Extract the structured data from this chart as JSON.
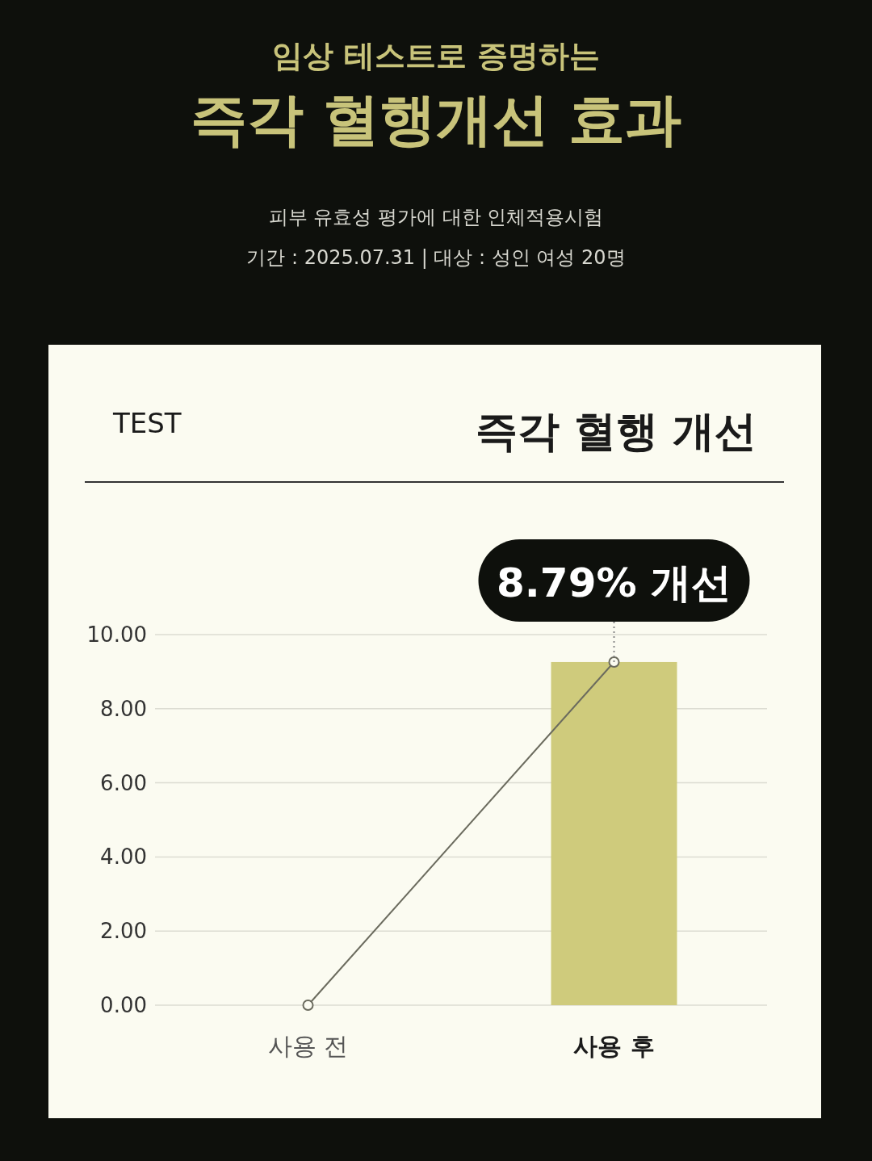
{
  "chart_data": {
    "type": "bar",
    "title": "즉각 혈행개선 효과",
    "subtitle": "임상 테스트로 증명하는",
    "categories": [
      "사용 전",
      "사용 후"
    ],
    "series": [
      {
        "color": "#cfcb7c",
        "values": [
          null,
          9.26
        ]
      },
      {
        "type": "line",
        "color": "#6b6b5e",
        "values": [
          0,
          9.26
        ]
      }
    ],
    "marker": "circle",
    "grid": "y",
    "ylim": [
      0,
      10
    ],
    "yticks": [
      {
        "value": 0,
        "label": "0.00"
      },
      {
        "value": 2,
        "label": "2.00"
      },
      {
        "value": 4,
        "label": "4.00"
      },
      {
        "value": 6,
        "label": "6.00"
      },
      {
        "value": 8,
        "label": "8.00"
      },
      {
        "value": 10,
        "label": "10.00"
      }
    ],
    "annotations": [
      "피부 유효성 평가에 대한 인체적용시험",
      "기간 : 2025.07.31 | 대상 : 성인 여성 20명",
      "TEST",
      "즉각 혈행 개선",
      {
        "text": "8.79% 개선",
        "x": "사용 후",
        "y": 9.26
      }
    ]
  }
}
